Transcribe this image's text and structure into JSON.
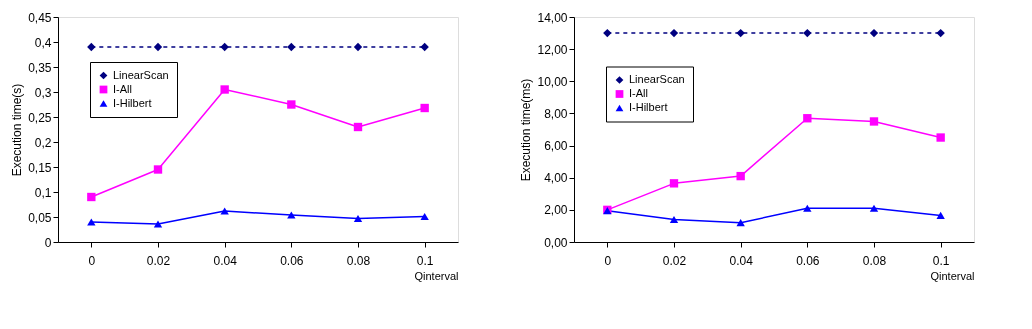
{
  "chart_data": [
    {
      "type": "line",
      "xlabel": "Qinterval",
      "ylabel": "Execution time(s)",
      "categories": [
        "0",
        "0.02",
        "0.04",
        "0.06",
        "0.08",
        "0.1"
      ],
      "ylim": [
        0,
        0.45
      ],
      "yticks": [
        0,
        {
          "value": 0.05,
          "label": "0,05"
        },
        {
          "value": 0.1,
          "label": "0,1"
        },
        {
          "value": 0.15,
          "label": "0,15"
        },
        {
          "value": 0.2,
          "label": "0,2"
        },
        {
          "value": 0.25,
          "label": "0,25"
        },
        {
          "value": 0.3,
          "label": "0,3"
        },
        {
          "value": 0.35,
          "label": "0,35"
        },
        {
          "value": 0.4,
          "label": "0,4"
        },
        {
          "value": 0.45,
          "label": "0,45"
        }
      ],
      "grid": false,
      "legend": "top left",
      "series": [
        {
          "name": "LinearScan",
          "color": "#000080",
          "marker": "diamond",
          "line_style": "dashed",
          "values": [
            0.39,
            0.39,
            0.39,
            0.39,
            0.39,
            0.39
          ]
        },
        {
          "name": "I-All",
          "color": "#ff00ff",
          "marker": "square",
          "line_style": "solid",
          "values": [
            0.09,
            0.145,
            0.305,
            0.275,
            0.23,
            0.268
          ]
        },
        {
          "name": "I-Hilbert",
          "color": "#0000ff",
          "marker": "triangle",
          "line_style": "solid",
          "values": [
            0.04,
            0.036,
            0.062,
            0.054,
            0.047,
            0.051
          ]
        }
      ]
    },
    {
      "type": "line",
      "xlabel": "Qinterval",
      "ylabel": "Execution time(ms)",
      "categories": [
        "0",
        "0.02",
        "0.04",
        "0.06",
        "0.08",
        "0.1"
      ],
      "ylim": [
        0,
        14
      ],
      "yticks": [
        {
          "value": 0,
          "label": "0,00"
        },
        {
          "value": 2,
          "label": "2,00"
        },
        {
          "value": 4,
          "label": "4,00"
        },
        {
          "value": 6,
          "label": "6,00"
        },
        {
          "value": 8,
          "label": "8,00"
        },
        {
          "value": 10,
          "label": "10,00"
        },
        {
          "value": 12,
          "label": "12,00"
        },
        {
          "value": 14,
          "label": "14,00"
        }
      ],
      "grid": false,
      "legend": "left",
      "series": [
        {
          "name": "LinearScan",
          "color": "#000080",
          "marker": "diamond",
          "line_style": "dashed",
          "values": [
            13,
            13,
            13,
            13,
            13,
            13
          ]
        },
        {
          "name": "I-All",
          "color": "#ff00ff",
          "marker": "square",
          "line_style": "solid",
          "values": [
            2.0,
            3.65,
            4.1,
            7.7,
            7.5,
            6.5
          ]
        },
        {
          "name": "I-Hilbert",
          "color": "#0000ff",
          "marker": "triangle",
          "line_style": "solid",
          "values": [
            1.95,
            1.4,
            1.2,
            2.1,
            2.1,
            1.65
          ]
        }
      ]
    }
  ]
}
